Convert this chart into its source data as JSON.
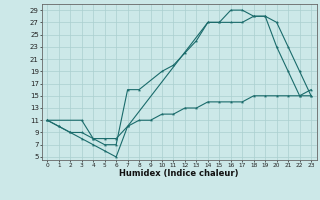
{
  "xlabel": "Humidex (Indice chaleur)",
  "bg_color": "#cce8e8",
  "line_color": "#1a6b6b",
  "grid_color": "#aacfcf",
  "xlim": [
    -0.5,
    23.5
  ],
  "ylim": [
    4.5,
    30
  ],
  "xticks": [
    0,
    1,
    2,
    3,
    4,
    5,
    6,
    7,
    8,
    9,
    10,
    11,
    12,
    13,
    14,
    15,
    16,
    17,
    18,
    19,
    20,
    21,
    22,
    23
  ],
  "yticks": [
    5,
    7,
    9,
    11,
    13,
    15,
    17,
    19,
    21,
    23,
    25,
    27,
    29
  ],
  "line1_x": [
    0,
    1,
    2,
    3,
    4,
    5,
    6,
    7,
    14,
    15,
    16,
    17,
    18,
    19,
    20,
    21,
    22,
    23
  ],
  "line1_y": [
    11,
    10,
    9,
    8,
    7,
    6,
    5,
    10,
    27,
    27,
    29,
    29,
    28,
    28,
    23,
    19,
    15,
    15
  ],
  "line2_x": [
    0,
    3,
    4,
    5,
    6,
    7,
    8,
    10,
    11,
    12,
    13,
    14,
    15,
    16,
    17,
    18,
    19,
    20,
    21,
    22,
    23
  ],
  "line2_y": [
    11,
    11,
    8,
    7,
    7,
    16,
    16,
    19,
    20,
    22,
    24,
    27,
    27,
    27,
    27,
    28,
    28,
    27,
    23,
    19,
    15
  ],
  "line3_x": [
    0,
    1,
    2,
    3,
    4,
    5,
    6,
    7,
    8,
    9,
    10,
    11,
    12,
    13,
    14,
    15,
    16,
    17,
    18,
    19,
    20,
    21,
    22,
    23
  ],
  "line3_y": [
    11,
    10,
    9,
    9,
    8,
    8,
    8,
    10,
    11,
    11,
    12,
    12,
    13,
    13,
    14,
    14,
    14,
    14,
    15,
    15,
    15,
    15,
    15,
    16
  ],
  "xtick_fontsize": 4.2,
  "ytick_fontsize": 5.0,
  "xlabel_fontsize": 6.0
}
